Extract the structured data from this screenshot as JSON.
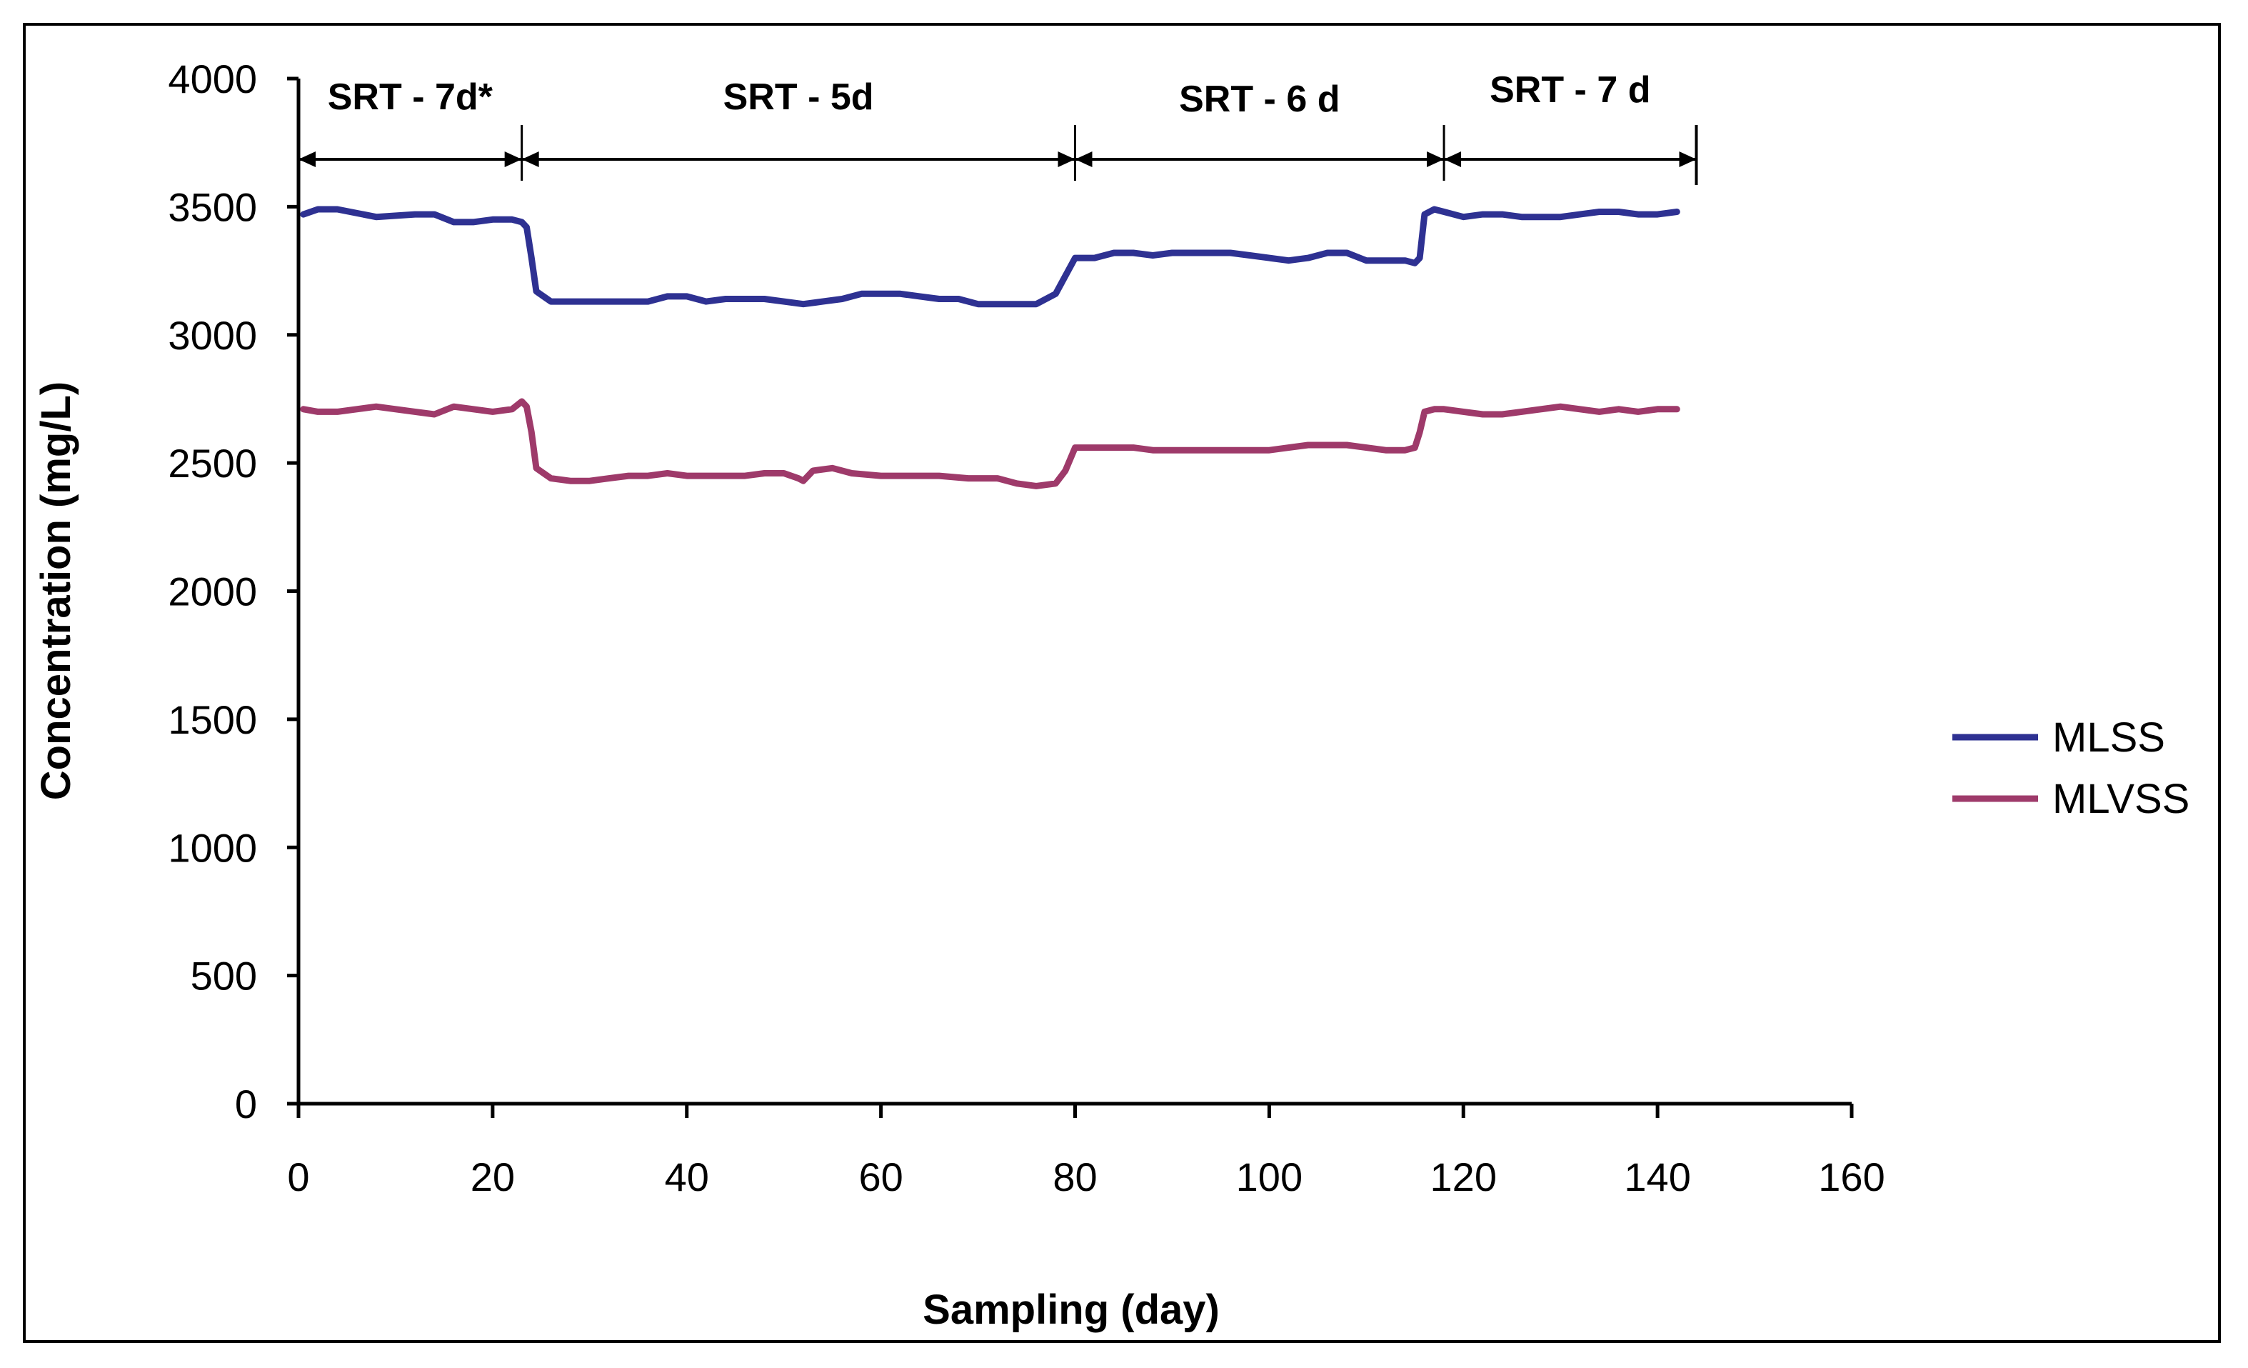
{
  "chart_data": {
    "type": "line",
    "xlabel": "Sampling (day)",
    "ylabel": "Concentration (mg/L)",
    "xlim": [
      0,
      160
    ],
    "ylim": [
      0,
      4000
    ],
    "x_ticks": [
      "0",
      "20",
      "40",
      "60",
      "80",
      "100",
      "120",
      "140",
      "160"
    ],
    "y_ticks": [
      "0",
      "500",
      "1000",
      "1500",
      "2000",
      "2500",
      "3000",
      "3500",
      "4000"
    ],
    "grid": false,
    "legend_position": "right",
    "periods": [
      {
        "label": "SRT - 7d*",
        "start": 0,
        "end": 23
      },
      {
        "label": "SRT - 5d",
        "start": 23,
        "end": 80
      },
      {
        "label": "SRT - 6 d",
        "start": 80,
        "end": 118
      },
      {
        "label": "SRT - 7 d",
        "start": 118,
        "end": 144
      }
    ],
    "series": [
      {
        "name": "MLSS",
        "color": "#2e3192",
        "x": [
          0.5,
          2,
          4,
          8,
          12,
          14,
          16,
          18,
          20,
          22,
          23,
          23.5,
          24,
          24.5,
          26,
          30,
          36,
          38,
          40,
          42,
          44,
          46,
          48,
          50,
          52,
          54,
          56,
          58,
          60,
          62,
          64,
          66,
          68,
          70,
          72,
          74,
          76,
          78,
          79,
          80,
          82,
          84,
          86,
          88,
          90,
          92,
          94,
          96,
          98,
          100,
          102,
          104,
          106,
          108,
          110,
          112,
          114,
          115,
          115.5,
          116,
          117,
          118,
          120,
          122,
          124,
          126,
          128,
          130,
          132,
          134,
          136,
          138,
          140,
          142
        ],
        "y": [
          3470,
          3490,
          3490,
          3460,
          3470,
          3470,
          3440,
          3440,
          3450,
          3450,
          3440,
          3420,
          3300,
          3170,
          3130,
          3130,
          3130,
          3150,
          3150,
          3130,
          3140,
          3140,
          3140,
          3130,
          3120,
          3130,
          3140,
          3160,
          3160,
          3160,
          3150,
          3140,
          3140,
          3120,
          3120,
          3120,
          3120,
          3160,
          3230,
          3300,
          3300,
          3320,
          3320,
          3310,
          3320,
          3320,
          3320,
          3320,
          3310,
          3300,
          3290,
          3300,
          3320,
          3320,
          3290,
          3290,
          3290,
          3280,
          3300,
          3470,
          3490,
          3480,
          3460,
          3470,
          3470,
          3460,
          3460,
          3460,
          3470,
          3480,
          3480,
          3470,
          3470,
          3480
        ]
      },
      {
        "name": "MLVSS",
        "color": "#9e3a6a",
        "x": [
          0.5,
          2,
          4,
          6,
          8,
          10,
          12,
          14,
          16,
          18,
          20,
          22,
          23,
          23.5,
          24,
          24.5,
          26,
          28,
          30,
          32,
          34,
          36,
          38,
          40,
          42,
          44,
          46,
          48,
          50,
          51.5,
          52,
          53,
          55,
          57,
          60,
          63,
          66,
          69,
          72,
          74,
          76,
          78,
          79,
          80,
          82,
          84,
          86,
          88,
          90,
          92,
          94,
          96,
          98,
          100,
          102,
          104,
          106,
          108,
          110,
          112,
          114,
          115,
          115.5,
          116,
          117,
          118,
          120,
          122,
          124,
          126,
          128,
          130,
          132,
          134,
          136,
          138,
          140,
          142
        ],
        "y": [
          2710,
          2700,
          2700,
          2710,
          2720,
          2710,
          2700,
          2690,
          2720,
          2710,
          2700,
          2710,
          2740,
          2720,
          2620,
          2480,
          2440,
          2430,
          2430,
          2440,
          2450,
          2450,
          2460,
          2450,
          2450,
          2450,
          2450,
          2460,
          2460,
          2440,
          2430,
          2470,
          2480,
          2460,
          2450,
          2450,
          2450,
          2440,
          2440,
          2420,
          2410,
          2420,
          2470,
          2560,
          2560,
          2560,
          2560,
          2550,
          2550,
          2550,
          2550,
          2550,
          2550,
          2550,
          2560,
          2570,
          2570,
          2570,
          2560,
          2550,
          2550,
          2560,
          2620,
          2700,
          2710,
          2710,
          2700,
          2690,
          2690,
          2700,
          2710,
          2720,
          2710,
          2700,
          2710,
          2700,
          2710,
          2710
        ]
      }
    ]
  }
}
